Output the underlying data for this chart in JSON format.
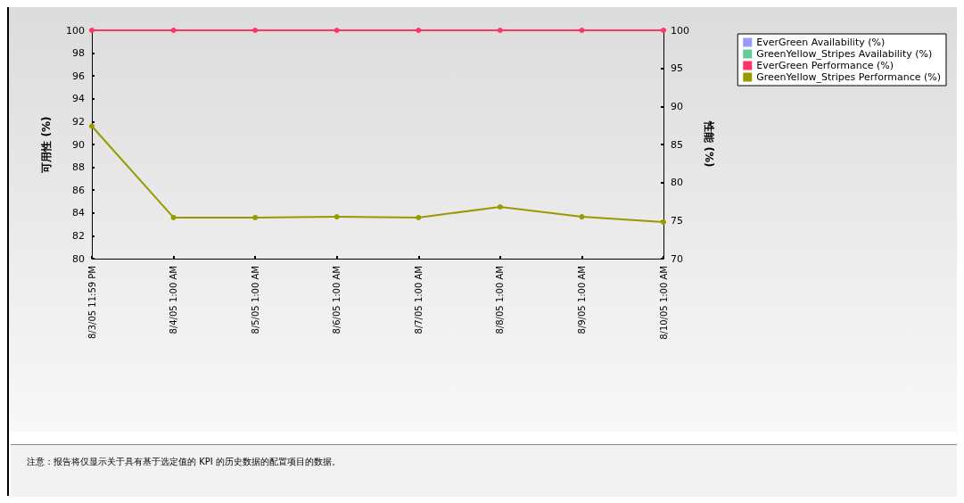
{
  "chart_data": {
    "type": "line",
    "ylabel": "可用性 (%)",
    "y2label": "性能 (%)",
    "categories": [
      "8/3/05 11:59 PM",
      "8/4/05 1:00 AM",
      "8/5/05 1:00 AM",
      "8/6/05 1:00 AM",
      "8/7/05 1:00 AM",
      "8/8/05 1:00 AM",
      "8/9/05 1:00 AM",
      "8/10/05 1:00 AM"
    ],
    "series": [
      {
        "name": "EverGreen Availability (%)",
        "color": "#9999ff",
        "values": [
          null,
          null,
          null,
          null,
          null,
          null,
          null,
          null
        ]
      },
      {
        "name": "GreenYellow_Stripes Availability (%)",
        "color": "#66cc99",
        "values": [
          null,
          null,
          null,
          null,
          null,
          null,
          null,
          null
        ]
      },
      {
        "name": "EverGreen Performance (%)",
        "color": "#ff3366",
        "axis": "y2",
        "values": [
          100,
          100,
          100,
          100,
          100,
          100,
          100,
          100
        ]
      },
      {
        "name": "GreenYellow_Stripes Performance (%)",
        "color": "#999900",
        "axis": "y2",
        "values": [
          87.4,
          75.4,
          75.4,
          75.5,
          75.4,
          76.8,
          75.5,
          74.8
        ]
      }
    ],
    "ylim": [
      80,
      100
    ],
    "yticks": [
      80,
      82,
      84,
      86,
      88,
      90,
      92,
      94,
      96,
      98,
      100
    ],
    "y2lim": [
      70,
      100
    ],
    "y2ticks": [
      70,
      75,
      80,
      85,
      90,
      95,
      100
    ],
    "legend": "top right",
    "grid": false,
    "marker": "circle",
    "line_style": "solid",
    "annotations": [
      "注意：报告将仅显示关于具有基于选定值的 KPI 的历史数据的配置项目的数据。"
    ]
  }
}
